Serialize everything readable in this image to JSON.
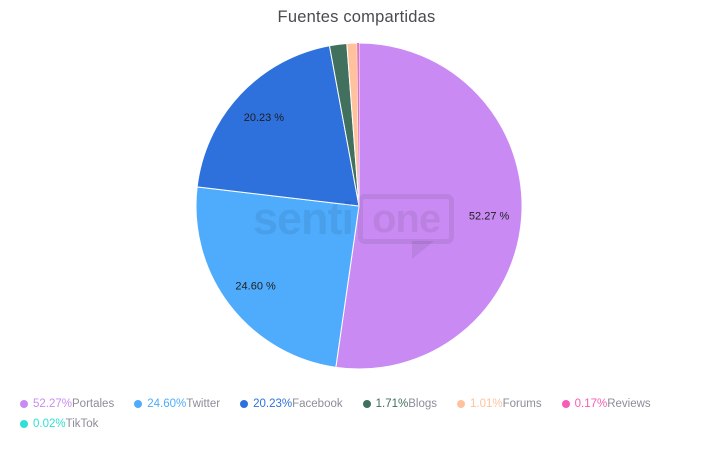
{
  "chart": {
    "title": "Fuentes compartidas",
    "watermark": {
      "left": "senti",
      "right": "one"
    }
  },
  "chart_data": {
    "type": "pie",
    "title": "Fuentes compartidas",
    "start_angle_deg": 0,
    "direction": "clockwise",
    "legend_position": "bottom-left",
    "series": [
      {
        "label": "Portales",
        "value": 52.27,
        "color": "#C98BF3",
        "legend_pct": "52.27%",
        "slice_label": "52.27 %"
      },
      {
        "label": "Twitter",
        "value": 24.6,
        "color": "#4FACFC",
        "legend_pct": "24.60%",
        "slice_label": "24.60 %"
      },
      {
        "label": "Facebook",
        "value": 20.23,
        "color": "#2E71DD",
        "legend_pct": "20.23%",
        "slice_label": "20.23 %"
      },
      {
        "label": "Blogs",
        "value": 1.71,
        "color": "#41705F",
        "legend_pct": "1.71%",
        "slice_label": ""
      },
      {
        "label": "Forums",
        "value": 1.01,
        "color": "#FFC29D",
        "legend_pct": "1.01%",
        "slice_label": ""
      },
      {
        "label": "Reviews",
        "value": 0.17,
        "color": "#F85CB4",
        "legend_pct": "0.17%",
        "slice_label": ""
      },
      {
        "label": "TikTok",
        "value": 0.02,
        "color": "#2EE0D6",
        "legend_pct": "0.02%",
        "slice_label": ""
      }
    ]
  },
  "colors": {
    "background": "#FFFFFF",
    "title_text": "#4A4A52",
    "slice_label_text": "#1E1E1E",
    "slice_stroke": "#FFFFFF",
    "legend_label_text": "#8D8D99",
    "watermark": "rgba(0,0,0,0.07)"
  }
}
